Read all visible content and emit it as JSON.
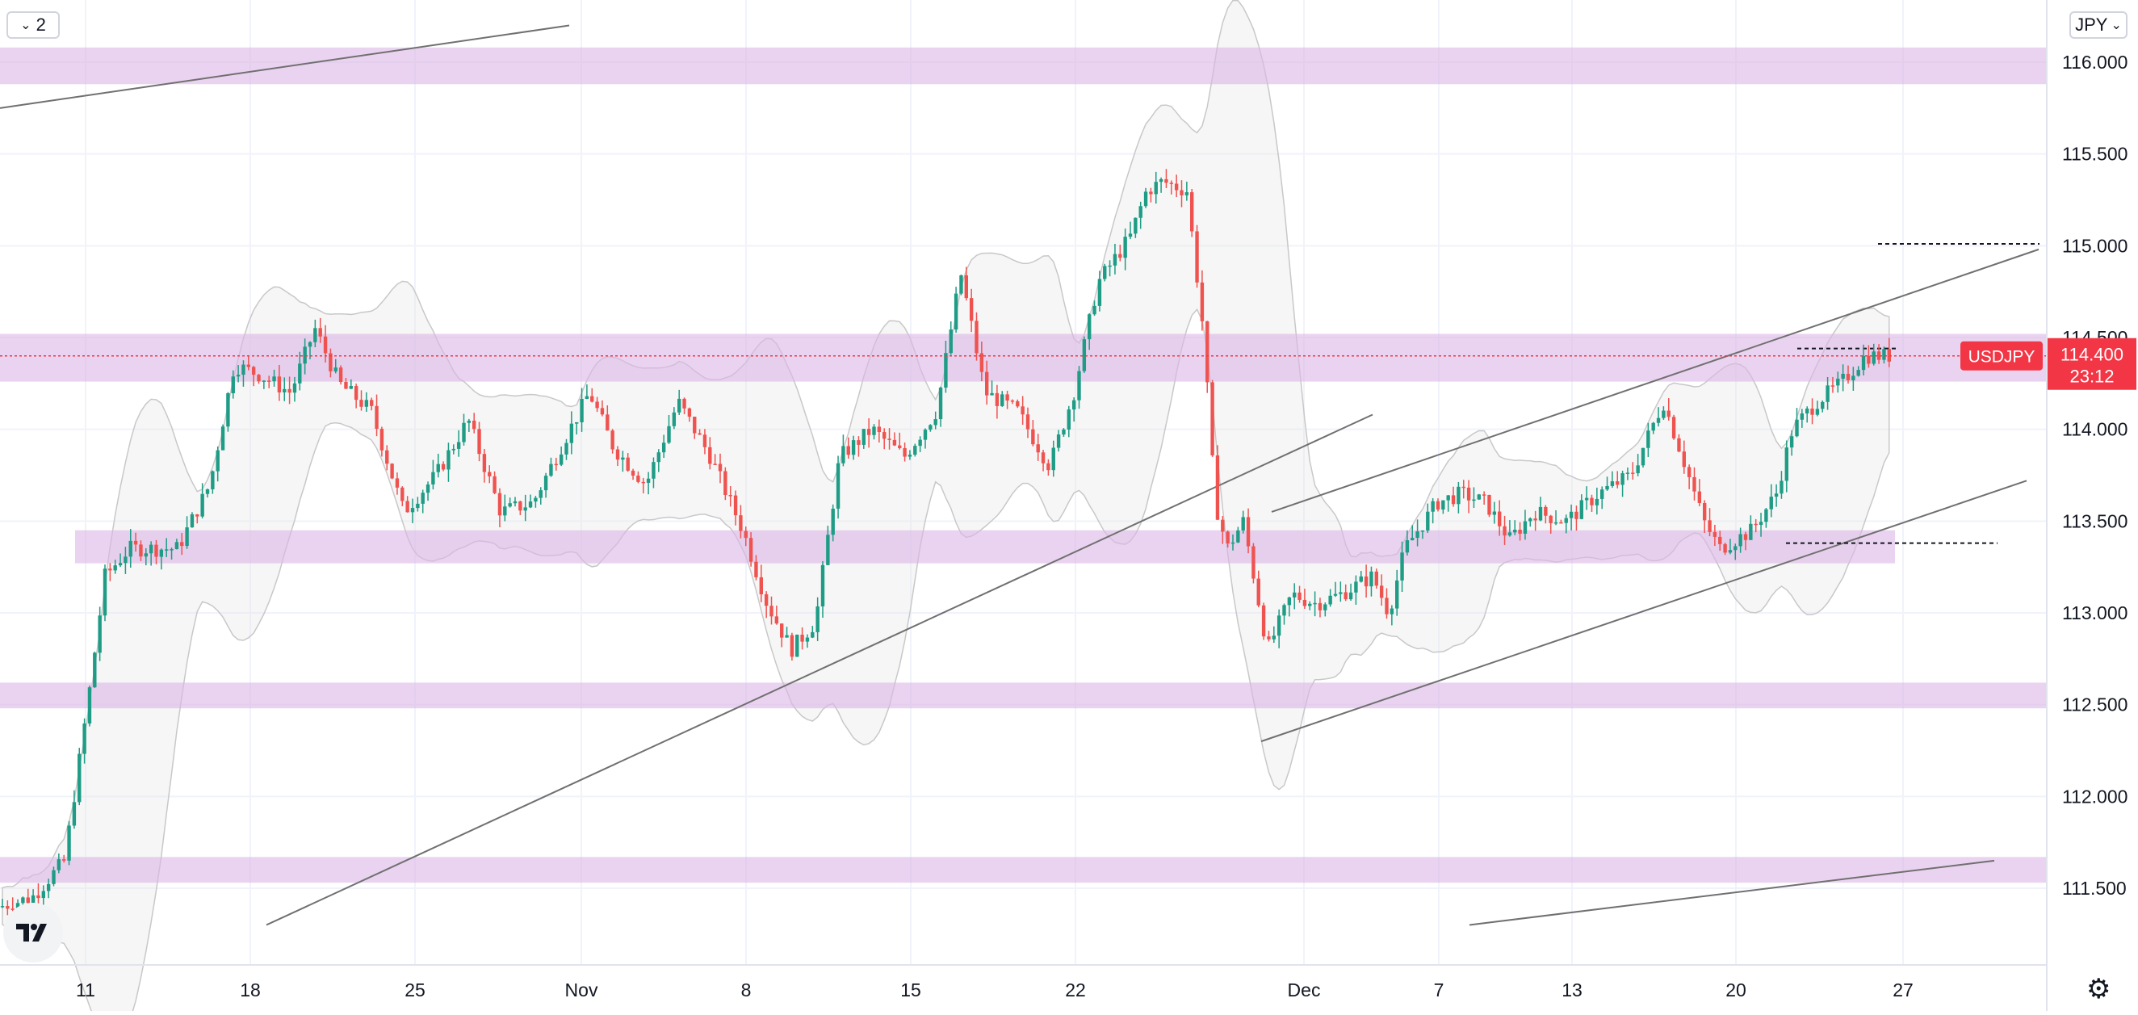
{
  "toolbar": {
    "interval_label": "2",
    "currency_label": "JPY",
    "settings_icon": "gear-icon",
    "logo_icon": "tradingview-logo-icon"
  },
  "colors": {
    "up": "#1e9c85",
    "down": "#ef5350",
    "zone": "#dcb5e6",
    "band": "#e6e6e6",
    "label_bg": "#f23645",
    "grid": "#f0f3fa",
    "text": "#131722"
  },
  "chart_data": {
    "type": "candlestick",
    "symbol": "USDJPY",
    "last_price": "114.400",
    "countdown": "23:12",
    "y_ticks": [
      "116.000",
      "115.500",
      "115.000",
      "114.500",
      "114.000",
      "113.500",
      "113.000",
      "112.500",
      "112.000",
      "111.500"
    ],
    "ylim": [
      111.3,
      116.2
    ],
    "x_ticks": [
      "11",
      "18",
      "25",
      "Nov",
      "8",
      "15",
      "22",
      "Dec",
      "7",
      "13",
      "20",
      "27"
    ],
    "grid": true,
    "zones": [
      {
        "from": 115.88,
        "to": 116.08
      },
      {
        "from": 114.26,
        "to": 114.52
      },
      {
        "from": 113.27,
        "to": 113.45
      },
      {
        "from": 112.48,
        "to": 112.62
      },
      {
        "from": 111.53,
        "to": 111.67
      }
    ],
    "levels": [
      115.01,
      114.44,
      113.38
    ],
    "trend_lines": [
      [
        [
          0,
          115.75
        ],
        [
          705,
          116.2
        ]
      ],
      [
        [
          330,
          111.3
        ],
        [
          1700,
          114.08
        ]
      ],
      [
        [
          1562,
          112.3
        ],
        [
          2510,
          113.72
        ]
      ],
      [
        [
          1575,
          113.55
        ],
        [
          2525,
          114.98
        ]
      ],
      [
        [
          1820,
          111.3
        ],
        [
          2470,
          111.65
        ]
      ]
    ],
    "price_line": 114.4,
    "seed": 7
  }
}
